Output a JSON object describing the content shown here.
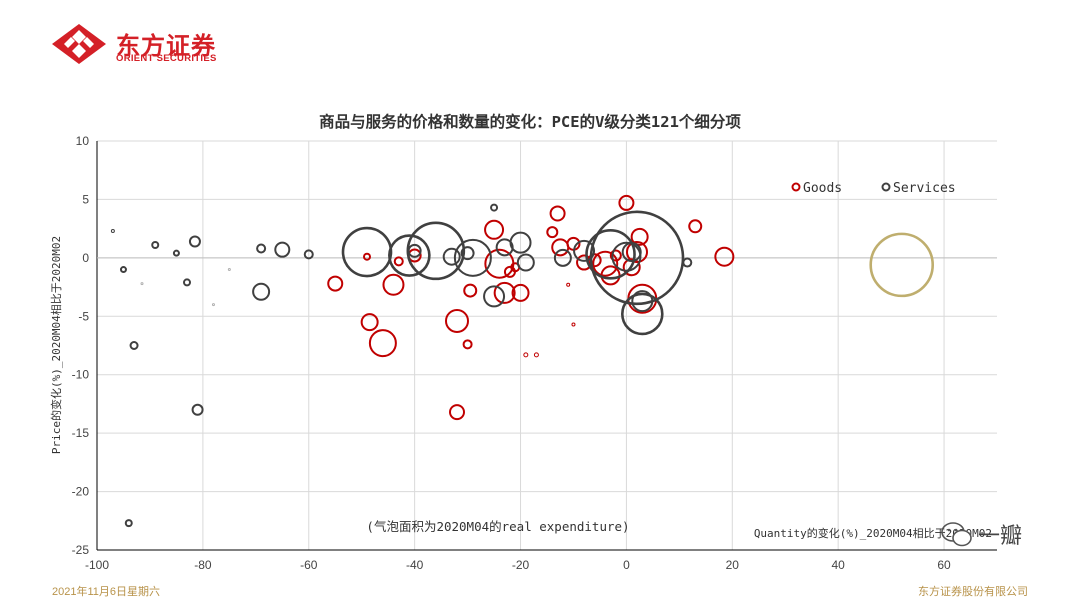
{
  "brand": {
    "name_cn": "东方证券",
    "name_en": "ORIENT SECURITIES",
    "logo_color": "#d42027"
  },
  "footer": {
    "date": "2021年11月6日星期六",
    "company": "东方证券股份有限公司"
  },
  "watermark": {
    "icon": "wechat-icon",
    "text": "一瓣"
  },
  "colors": {
    "goods": "#c00000",
    "services": "#404040",
    "highlight": "#bfae6e",
    "grid": "#d9d9d9"
  },
  "chart_data": {
    "type": "scatter",
    "title": "商品与服务的价格和数量的变化：PCE的V级分类121个细分项",
    "xlabel": "Quantity的变化(%)_2020M04相比于2020M02",
    "ylabel": "Price的变化(%)_2020M04相比于2020M02",
    "annotation": "(气泡面积为2020M04的real expenditure)",
    "xlim": [
      -100,
      70
    ],
    "ylim": [
      -25,
      10
    ],
    "xticks": [
      -100,
      -80,
      -60,
      -40,
      -20,
      0,
      20,
      40,
      60
    ],
    "yticks": [
      10,
      5,
      0,
      -5,
      -10,
      -15,
      -20,
      -25
    ],
    "grid": true,
    "legend_position": "top-right",
    "series": [
      {
        "name": "Goods",
        "color": "#c00000",
        "points": [
          {
            "x": -55,
            "y": -2.2,
            "r": 7
          },
          {
            "x": -49,
            "y": 0.1,
            "r": 3
          },
          {
            "x": -48.5,
            "y": -5.5,
            "r": 8
          },
          {
            "x": -46,
            "y": -7.3,
            "r": 13
          },
          {
            "x": -44,
            "y": -2.3,
            "r": 10
          },
          {
            "x": -43,
            "y": -0.3,
            "r": 4
          },
          {
            "x": -40,
            "y": 0.2,
            "r": 6
          },
          {
            "x": -32,
            "y": -5.4,
            "r": 11
          },
          {
            "x": -32,
            "y": -13.2,
            "r": 7
          },
          {
            "x": -30,
            "y": -7.4,
            "r": 4
          },
          {
            "x": -29.5,
            "y": -2.8,
            "r": 6
          },
          {
            "x": -25,
            "y": 2.4,
            "r": 9
          },
          {
            "x": -24,
            "y": -0.5,
            "r": 14
          },
          {
            "x": -23,
            "y": -3.0,
            "r": 10
          },
          {
            "x": -22,
            "y": -1.2,
            "r": 5
          },
          {
            "x": -21,
            "y": -0.8,
            "r": 4
          },
          {
            "x": -20,
            "y": -3.0,
            "r": 8
          },
          {
            "x": -19,
            "y": -8.3,
            "r": 2
          },
          {
            "x": -17,
            "y": -8.3,
            "r": 2
          },
          {
            "x": -14,
            "y": 2.2,
            "r": 5
          },
          {
            "x": -13,
            "y": 3.8,
            "r": 7
          },
          {
            "x": -12.5,
            "y": 0.9,
            "r": 8
          },
          {
            "x": -11,
            "y": -2.3,
            "r": 1.5
          },
          {
            "x": -10,
            "y": -5.7,
            "r": 1.5
          },
          {
            "x": -10,
            "y": 1.2,
            "r": 6
          },
          {
            "x": -8,
            "y": -0.4,
            "r": 7
          },
          {
            "x": -6,
            "y": -0.2,
            "r": 6
          },
          {
            "x": -4,
            "y": -0.5,
            "r": 12
          },
          {
            "x": -3,
            "y": -1.5,
            "r": 9
          },
          {
            "x": -2,
            "y": 0.2,
            "r": 5
          },
          {
            "x": 0,
            "y": 4.7,
            "r": 7
          },
          {
            "x": 1,
            "y": -0.8,
            "r": 8
          },
          {
            "x": 2,
            "y": 0.5,
            "r": 10
          },
          {
            "x": 2.5,
            "y": 1.8,
            "r": 8
          },
          {
            "x": 3,
            "y": -3.5,
            "r": 14
          },
          {
            "x": 13,
            "y": 2.7,
            "r": 6
          },
          {
            "x": 18.5,
            "y": 0.1,
            "r": 9
          }
        ]
      },
      {
        "name": "Services",
        "color": "#404040",
        "points": [
          {
            "x": -97,
            "y": 2.3,
            "r": 1.5
          },
          {
            "x": -95,
            "y": -1.0,
            "r": 2.5
          },
          {
            "x": -94,
            "y": -22.7,
            "r": 3
          },
          {
            "x": -93,
            "y": -7.5,
            "r": 3.5
          },
          {
            "x": -89,
            "y": 1.1,
            "r": 3
          },
          {
            "x": -85,
            "y": 0.4,
            "r": 2.5
          },
          {
            "x": -83,
            "y": -2.1,
            "r": 3
          },
          {
            "x": -81.5,
            "y": 1.4,
            "r": 5
          },
          {
            "x": -81,
            "y": -13.0,
            "r": 5
          },
          {
            "x": -69,
            "y": 0.8,
            "r": 4
          },
          {
            "x": -69,
            "y": -2.9,
            "r": 8
          },
          {
            "x": -65,
            "y": 0.7,
            "r": 7
          },
          {
            "x": -60,
            "y": 0.3,
            "r": 4
          },
          {
            "x": -49,
            "y": 0.5,
            "r": 24
          },
          {
            "x": -41,
            "y": 0.2,
            "r": 20
          },
          {
            "x": -40,
            "y": 0.6,
            "r": 6
          },
          {
            "x": -36,
            "y": 0.6,
            "r": 28
          },
          {
            "x": -33,
            "y": 0.1,
            "r": 8
          },
          {
            "x": -30,
            "y": 0.4,
            "r": 6
          },
          {
            "x": -29,
            "y": 0.0,
            "r": 18
          },
          {
            "x": -25,
            "y": 4.3,
            "r": 3
          },
          {
            "x": -25,
            "y": -3.3,
            "r": 10
          },
          {
            "x": -23,
            "y": 0.9,
            "r": 8
          },
          {
            "x": -20,
            "y": 1.3,
            "r": 10
          },
          {
            "x": -19,
            "y": -0.4,
            "r": 8
          },
          {
            "x": -12,
            "y": 0.0,
            "r": 8
          },
          {
            "x": -8,
            "y": 0.6,
            "r": 10
          },
          {
            "x": -3,
            "y": 0.3,
            "r": 24
          },
          {
            "x": 0,
            "y": 0.1,
            "r": 14
          },
          {
            "x": 1,
            "y": 0.5,
            "r": 9
          },
          {
            "x": 2,
            "y": 0.0,
            "r": 46
          },
          {
            "x": 3,
            "y": -3.7,
            "r": 10
          },
          {
            "x": 3,
            "y": -4.8,
            "r": 20
          },
          {
            "x": 11.5,
            "y": -0.4,
            "r": 4
          }
        ]
      },
      {
        "name": "",
        "color": "#bfae6e",
        "points": [
          {
            "x": 52,
            "y": -0.6,
            "r": 31
          }
        ]
      },
      {
        "name": "",
        "color": "#b0b0b0",
        "points": [
          {
            "x": -91.5,
            "y": -2.2,
            "r": 1
          },
          {
            "x": -75,
            "y": -1.0,
            "r": 1
          },
          {
            "x": -78,
            "y": -4.0,
            "r": 1
          }
        ]
      }
    ]
  }
}
